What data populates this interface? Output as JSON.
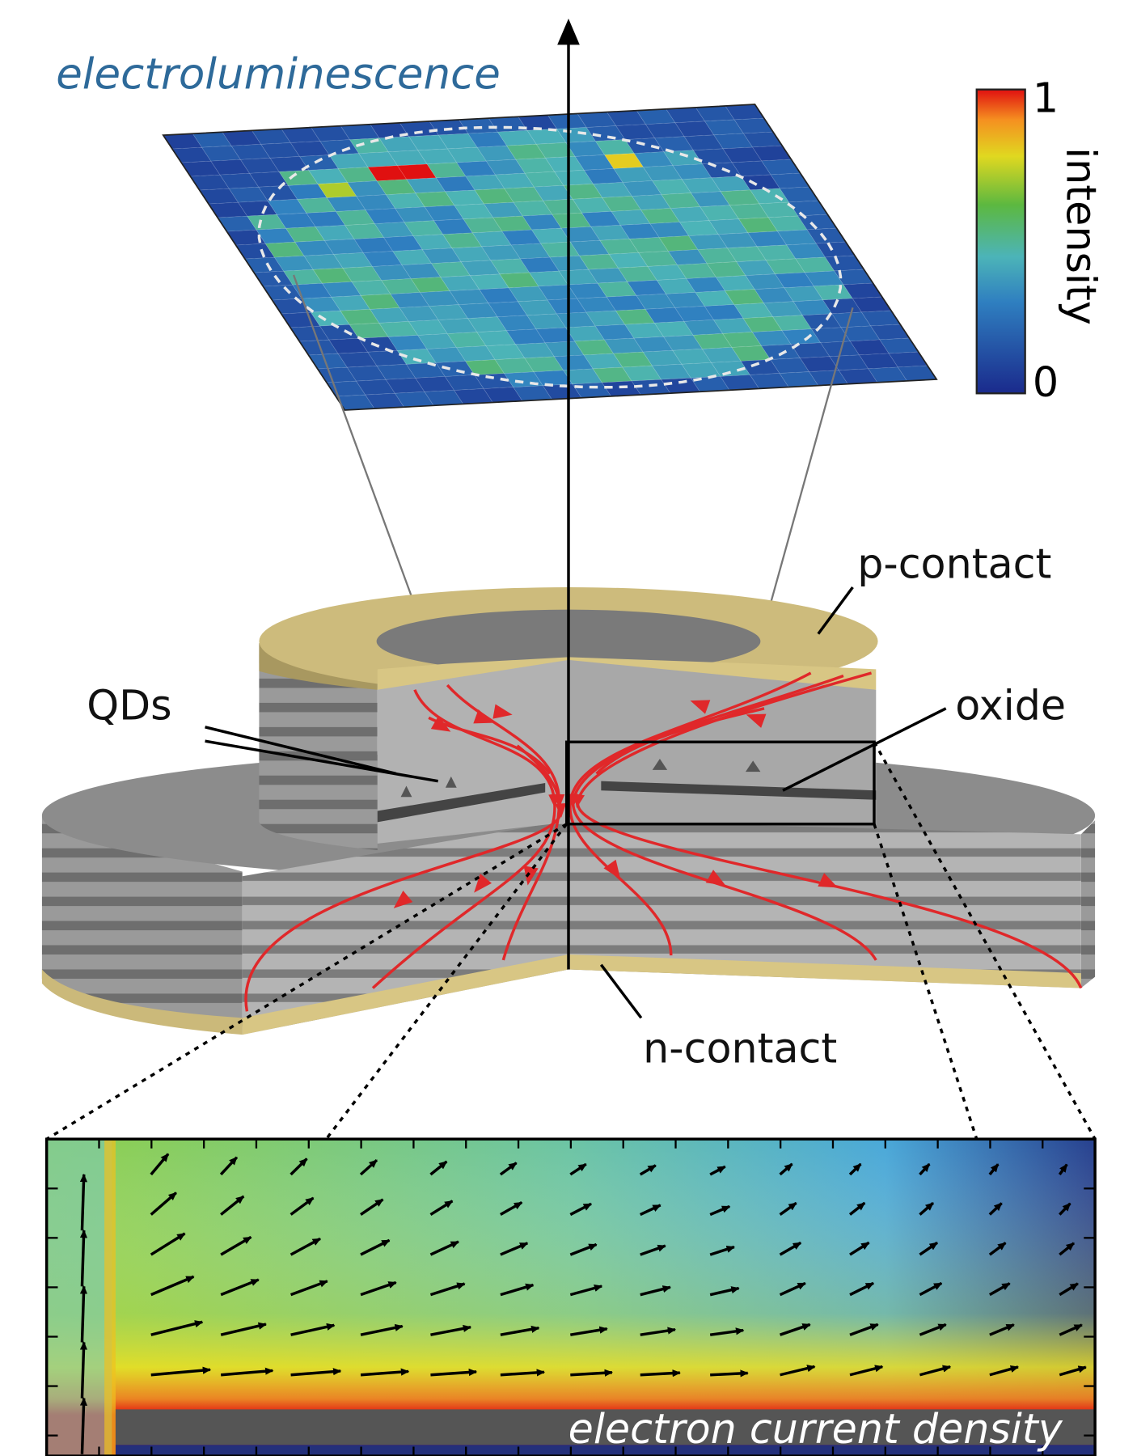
{
  "title": "electroluminescence",
  "colorbar": {
    "label": "intensity",
    "max_label": "1",
    "min_label": "0"
  },
  "labels": {
    "p_contact": "p-contact",
    "qds": "QDs",
    "oxide": "oxide",
    "n_contact": "n-contact"
  },
  "inset_title": "electron current density"
}
